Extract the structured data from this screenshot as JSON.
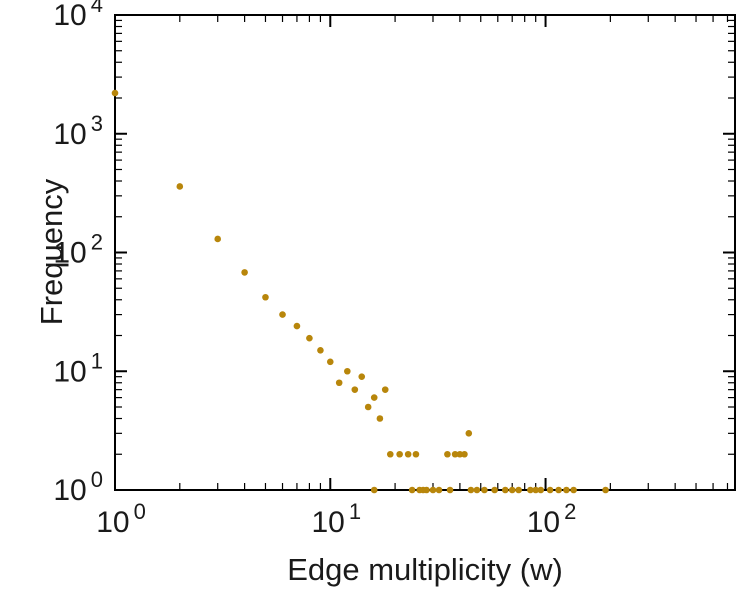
{
  "chart_data": {
    "type": "scatter",
    "title": "",
    "xlabel": "Edge multiplicity (w)",
    "ylabel": "Frequency",
    "x_scale": "log",
    "y_scale": "log",
    "x_range_log": [
      0,
      2.88
    ],
    "y_range_log": [
      0,
      4
    ],
    "x_tick_exponents": [
      0,
      1,
      2
    ],
    "y_tick_exponents": [
      0,
      1,
      2,
      3,
      4
    ],
    "grid": false,
    "legend": "none",
    "marker_color": "#b8860b",
    "marker_radius": 3.3,
    "axis_color": "#000000",
    "points": [
      [
        1,
        2200
      ],
      [
        2,
        360
      ],
      [
        3,
        130
      ],
      [
        4,
        68
      ],
      [
        5,
        42
      ],
      [
        6,
        30
      ],
      [
        7,
        24
      ],
      [
        8,
        19
      ],
      [
        9,
        15
      ],
      [
        10,
        12
      ],
      [
        11,
        8
      ],
      [
        12,
        10
      ],
      [
        13,
        7
      ],
      [
        14,
        9
      ],
      [
        15,
        5
      ],
      [
        16,
        6
      ],
      [
        17,
        4
      ],
      [
        18,
        7
      ],
      [
        16,
        1
      ],
      [
        19,
        2
      ],
      [
        21,
        2
      ],
      [
        23,
        2
      ],
      [
        25,
        2
      ],
      [
        24,
        1
      ],
      [
        26,
        1
      ],
      [
        27,
        1
      ],
      [
        28,
        1
      ],
      [
        30,
        1
      ],
      [
        32,
        1
      ],
      [
        35,
        2
      ],
      [
        38,
        2
      ],
      [
        40,
        2
      ],
      [
        42,
        2
      ],
      [
        44,
        3
      ],
      [
        36,
        1
      ],
      [
        45,
        1
      ],
      [
        48,
        1
      ],
      [
        52,
        1
      ],
      [
        58,
        1
      ],
      [
        65,
        1
      ],
      [
        70,
        1
      ],
      [
        75,
        1
      ],
      [
        85,
        1
      ],
      [
        90,
        1
      ],
      [
        95,
        1
      ],
      [
        105,
        1
      ],
      [
        115,
        1
      ],
      [
        125,
        1
      ],
      [
        135,
        1
      ],
      [
        190,
        1
      ]
    ]
  }
}
